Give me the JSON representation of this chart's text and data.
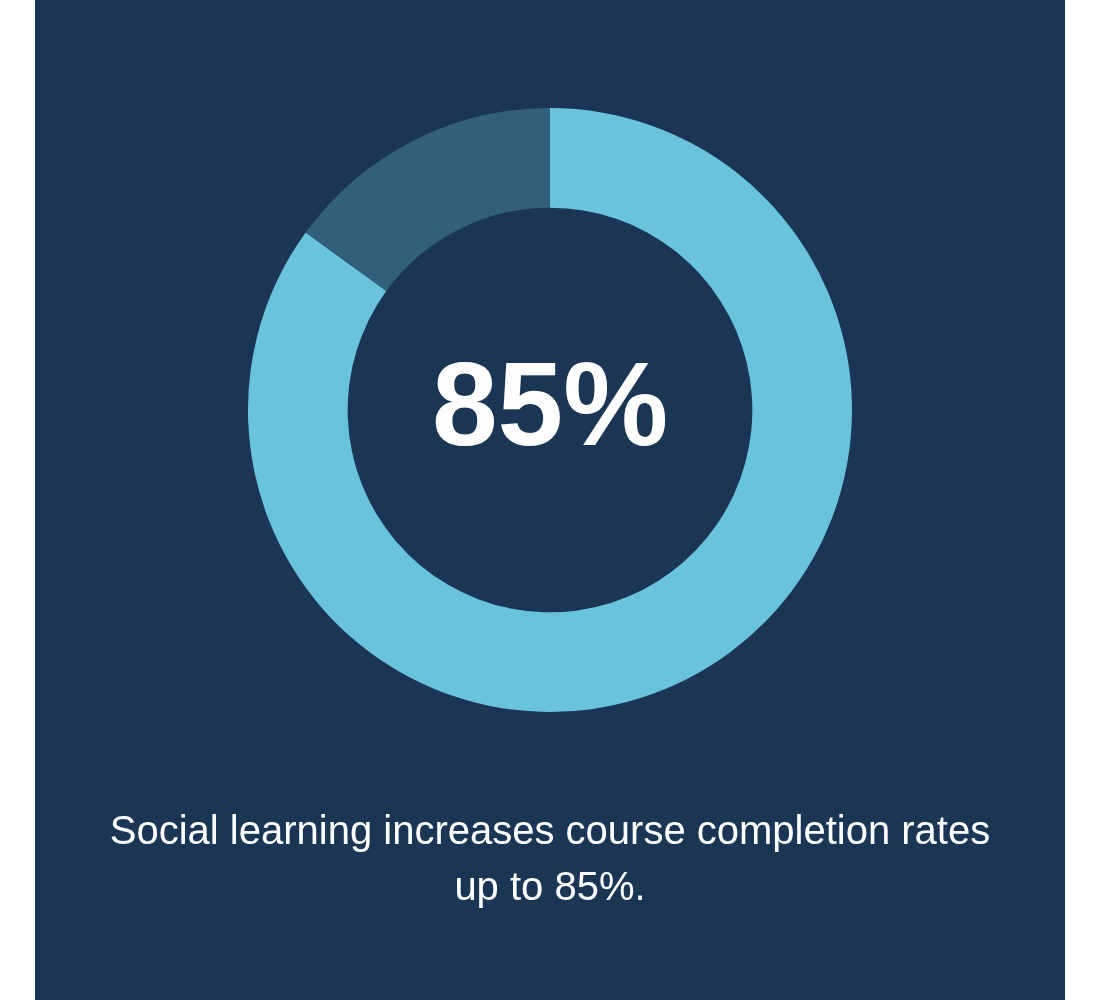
{
  "chart_data": {
    "type": "donut",
    "title": "Social learning increases course completion rates up to 85%.",
    "categories": [
      null,
      null
    ],
    "values": [
      85,
      15
    ],
    "colors": [
      "#68c3db",
      "#32607a"
    ],
    "value_labels": [
      "85%",
      null
    ],
    "legend": false
  }
}
